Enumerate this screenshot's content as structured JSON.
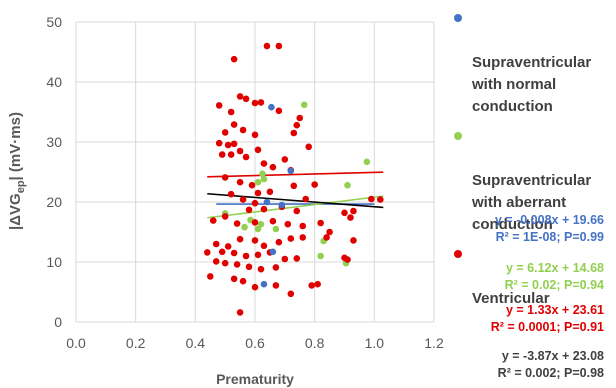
{
  "chart_data": {
    "type": "scatter",
    "xlabel": "Prematurity",
    "ylabel": "|ΔVG_ep| (mV·ms)",
    "xlim": [
      0.0,
      1.2
    ],
    "ylim": [
      0,
      50
    ],
    "x_ticks": [
      "0.0",
      "0.2",
      "0.4",
      "0.6",
      "0.8",
      "1.0",
      "1.2"
    ],
    "y_ticks": [
      "0",
      "10",
      "20",
      "30",
      "40",
      "50"
    ],
    "grid": true,
    "legend_position": "right",
    "series": [
      {
        "name": "Supraventricular with normal conduction",
        "color": "#4472C4",
        "points": [
          [
            0.63,
            6.3
          ],
          [
            0.655,
            35.8
          ],
          [
            0.72,
            25.2
          ],
          [
            0.66,
            11.7
          ],
          [
            0.64,
            20.0
          ],
          [
            0.69,
            19.5
          ]
        ],
        "trend": {
          "slope": -0.008,
          "intercept": 19.66,
          "x_range": [
            0.47,
            1.0
          ]
        },
        "equation": "y = -0.008x + 19.66",
        "r2": "R² = 1E-08; P=0.99"
      },
      {
        "name": "Supraventricular with aberrant conduction",
        "color": "#92D050",
        "points": [
          [
            0.765,
            36.2
          ],
          [
            0.975,
            26.7
          ],
          [
            0.625,
            24.7
          ],
          [
            0.63,
            23.8
          ],
          [
            0.61,
            23.3
          ],
          [
            0.91,
            22.8
          ],
          [
            0.5,
            18.1
          ],
          [
            0.585,
            17.0
          ],
          [
            0.62,
            16.3
          ],
          [
            0.565,
            15.8
          ],
          [
            0.61,
            15.5
          ],
          [
            0.67,
            15.5
          ],
          [
            0.83,
            13.5
          ],
          [
            0.905,
            9.8
          ],
          [
            0.82,
            11.0
          ]
        ],
        "trend": {
          "slope": 6.12,
          "intercept": 14.68,
          "x_range": [
            0.44,
            1.03
          ]
        },
        "equation": "y = 6.12x + 14.68",
        "r2": "R² = 0.02; P=0.94"
      },
      {
        "name": "Ventricular",
        "color": "#E00000",
        "points": [
          [
            0.64,
            46.0
          ],
          [
            0.68,
            46.0
          ],
          [
            0.53,
            43.8
          ],
          [
            0.55,
            37.6
          ],
          [
            0.57,
            37.2
          ],
          [
            0.6,
            36.5
          ],
          [
            0.62,
            36.6
          ],
          [
            0.48,
            36.1
          ],
          [
            0.52,
            35.0
          ],
          [
            0.68,
            35.2
          ],
          [
            0.75,
            34.0
          ],
          [
            0.53,
            32.9
          ],
          [
            0.56,
            32.0
          ],
          [
            0.5,
            31.6
          ],
          [
            0.6,
            31.2
          ],
          [
            0.74,
            32.8
          ],
          [
            0.73,
            31.5
          ],
          [
            0.48,
            29.8
          ],
          [
            0.51,
            29.5
          ],
          [
            0.53,
            29.7
          ],
          [
            0.55,
            28.5
          ],
          [
            0.61,
            28.7
          ],
          [
            0.78,
            29.2
          ],
          [
            0.49,
            27.9
          ],
          [
            0.52,
            27.9
          ],
          [
            0.57,
            27.5
          ],
          [
            0.63,
            26.4
          ],
          [
            0.66,
            25.8
          ],
          [
            0.7,
            27.1
          ],
          [
            0.72,
            25.3
          ],
          [
            0.5,
            24.1
          ],
          [
            0.55,
            23.3
          ],
          [
            0.59,
            22.8
          ],
          [
            0.61,
            21.5
          ],
          [
            0.65,
            21.7
          ],
          [
            0.73,
            22.7
          ],
          [
            0.8,
            22.9
          ],
          [
            0.77,
            20.5
          ],
          [
            1.02,
            20.4
          ],
          [
            0.99,
            20.5
          ],
          [
            0.52,
            21.3
          ],
          [
            0.56,
            20.4
          ],
          [
            0.6,
            19.8
          ],
          [
            0.63,
            18.8
          ],
          [
            0.69,
            19.2
          ],
          [
            0.58,
            18.7
          ],
          [
            0.74,
            18.5
          ],
          [
            0.9,
            18.2
          ],
          [
            0.93,
            18.5
          ],
          [
            0.46,
            16.9
          ],
          [
            0.5,
            17.6
          ],
          [
            0.54,
            16.4
          ],
          [
            0.6,
            16.6
          ],
          [
            0.66,
            16.8
          ],
          [
            0.71,
            16.3
          ],
          [
            0.76,
            16.0
          ],
          [
            0.82,
            16.5
          ],
          [
            0.85,
            15.0
          ],
          [
            0.92,
            17.4
          ],
          [
            0.47,
            13.0
          ],
          [
            0.51,
            12.6
          ],
          [
            0.55,
            13.8
          ],
          [
            0.6,
            13.6
          ],
          [
            0.63,
            12.7
          ],
          [
            0.68,
            13.3
          ],
          [
            0.72,
            13.9
          ],
          [
            0.76,
            14.1
          ],
          [
            0.84,
            14.1
          ],
          [
            0.93,
            13.6
          ],
          [
            0.49,
            11.7
          ],
          [
            0.53,
            11.5
          ],
          [
            0.57,
            11.0
          ],
          [
            0.61,
            11.2
          ],
          [
            0.65,
            11.6
          ],
          [
            0.7,
            10.5
          ],
          [
            0.74,
            10.6
          ],
          [
            0.44,
            11.6
          ],
          [
            0.47,
            10.1
          ],
          [
            0.5,
            9.8
          ],
          [
            0.54,
            9.6
          ],
          [
            0.58,
            9.2
          ],
          [
            0.62,
            8.8
          ],
          [
            0.67,
            9.1
          ],
          [
            0.9,
            10.7
          ],
          [
            0.91,
            10.4
          ],
          [
            0.45,
            7.6
          ],
          [
            0.53,
            7.2
          ],
          [
            0.56,
            6.8
          ],
          [
            0.6,
            5.8
          ],
          [
            0.67,
            6.1
          ],
          [
            0.79,
            6.1
          ],
          [
            0.81,
            6.3
          ],
          [
            0.72,
            4.7
          ],
          [
            0.55,
            1.6
          ]
        ],
        "trend": {
          "slope": 1.33,
          "intercept": 23.61,
          "x_range": [
            0.44,
            1.03
          ]
        },
        "equation": "y = 1.33x + 23.61",
        "r2": "R² = 0.0001; P=0.91"
      },
      {
        "name": "",
        "color": "#000000",
        "points": [],
        "trend": {
          "slope": -3.87,
          "intercept": 23.08,
          "x_range": [
            0.44,
            1.03
          ]
        },
        "equation": "y = -3.87x + 23.08",
        "r2": "R² = 0.002; P=0.98"
      }
    ]
  },
  "legend": {
    "items": [
      {
        "label": "Supraventricular\nwith normal\nconduction",
        "color": "#4472C4"
      },
      {
        "label": "Supraventricular\nwith aberrant\nconduction",
        "color": "#92D050"
      },
      {
        "label": "Ventricular",
        "color": "#E00000"
      }
    ]
  }
}
